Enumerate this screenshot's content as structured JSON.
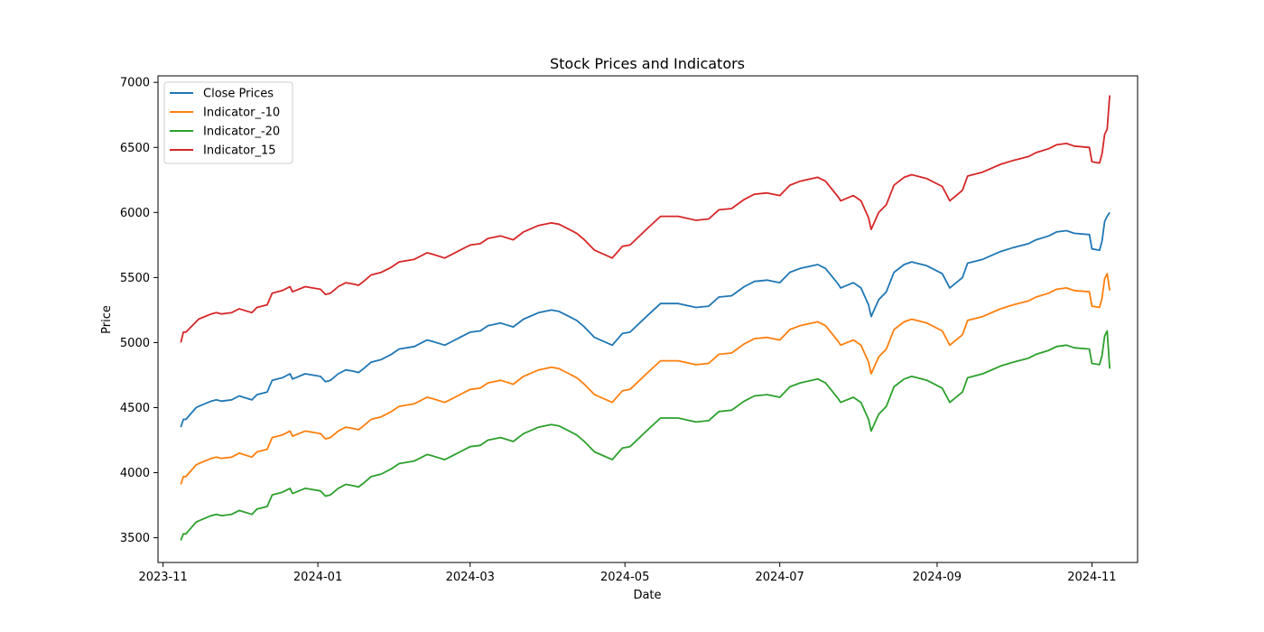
{
  "chart_data": {
    "type": "line",
    "title": "Stock Prices and Indicators",
    "xlabel": "Date",
    "ylabel": "Price",
    "xlim": [
      "2023-10-30",
      "2024-11-19"
    ],
    "ylim": [
      3310,
      7050
    ],
    "x_ticks": [
      "2023-11",
      "2024-01",
      "2024-03",
      "2024-05",
      "2024-07",
      "2024-09",
      "2024-11"
    ],
    "y_ticks": [
      3500,
      4000,
      4500,
      5000,
      5500,
      6000,
      6500,
      7000
    ],
    "grid": false,
    "legend_position": "top-left",
    "x": [
      "2023-11-08",
      "2023-11-09",
      "2023-11-10",
      "2023-11-14",
      "2023-11-15",
      "2023-11-20",
      "2023-11-22",
      "2023-11-24",
      "2023-11-28",
      "2023-12-01",
      "2023-12-06",
      "2023-12-08",
      "2023-12-12",
      "2023-12-14",
      "2023-12-18",
      "2023-12-21",
      "2023-12-22",
      "2023-12-27",
      "2024-01-02",
      "2024-01-04",
      "2024-01-06",
      "2024-01-09",
      "2024-01-12",
      "2024-01-15",
      "2024-01-17",
      "2024-01-19",
      "2024-01-22",
      "2024-01-26",
      "2024-01-30",
      "2024-02-02",
      "2024-02-08",
      "2024-02-13",
      "2024-02-15",
      "2024-02-20",
      "2024-02-23",
      "2024-03-01",
      "2024-03-05",
      "2024-03-08",
      "2024-03-13",
      "2024-03-18",
      "2024-03-22",
      "2024-03-28",
      "2024-04-02",
      "2024-04-05",
      "2024-04-09",
      "2024-04-12",
      "2024-04-15",
      "2024-04-19",
      "2024-04-26",
      "2024-04-30",
      "2024-05-03",
      "2024-05-10",
      "2024-05-15",
      "2024-05-22",
      "2024-05-29",
      "2024-06-03",
      "2024-06-07",
      "2024-06-12",
      "2024-06-17",
      "2024-06-21",
      "2024-06-26",
      "2024-07-01",
      "2024-07-05",
      "2024-07-09",
      "2024-07-16",
      "2024-07-19",
      "2024-07-24",
      "2024-07-25",
      "2024-07-30",
      "2024-08-02",
      "2024-08-05",
      "2024-08-06",
      "2024-08-09",
      "2024-08-12",
      "2024-08-15",
      "2024-08-19",
      "2024-08-22",
      "2024-08-28",
      "2024-09-03",
      "2024-09-06",
      "2024-09-11",
      "2024-09-13",
      "2024-09-19",
      "2024-09-26",
      "2024-10-01",
      "2024-10-07",
      "2024-10-10",
      "2024-10-15",
      "2024-10-18",
      "2024-10-22",
      "2024-10-25",
      "2024-10-31",
      "2024-11-01",
      "2024-11-04",
      "2024-11-05",
      "2024-11-06",
      "2024-11-07",
      "2024-11-08"
    ],
    "series": [
      {
        "name": "Close Prices",
        "color": "#1f77b4",
        "values": [
          4350,
          4410,
          4410,
          4500,
          4510,
          4550,
          4560,
          4550,
          4560,
          4590,
          4560,
          4600,
          4620,
          4710,
          4730,
          4760,
          4720,
          4760,
          4740,
          4700,
          4710,
          4760,
          4790,
          4780,
          4770,
          4800,
          4850,
          4870,
          4910,
          4950,
          4970,
          5020,
          5010,
          4980,
          5010,
          5080,
          5090,
          5130,
          5150,
          5120,
          5180,
          5230,
          5250,
          5240,
          5200,
          5170,
          5120,
          5040,
          4980,
          5070,
          5080,
          5210,
          5300,
          5300,
          5270,
          5280,
          5350,
          5360,
          5430,
          5470,
          5480,
          5460,
          5540,
          5570,
          5600,
          5570,
          5450,
          5420,
          5460,
          5420,
          5290,
          5200,
          5330,
          5390,
          5540,
          5600,
          5620,
          5590,
          5530,
          5420,
          5500,
          5610,
          5640,
          5700,
          5730,
          5760,
          5790,
          5820,
          5850,
          5860,
          5840,
          5830,
          5720,
          5710,
          5780,
          5930,
          5970,
          6000
        ]
      },
      {
        "name": "Indicator_-10",
        "color": "#ff7f0e",
        "values": [
          3910,
          3970,
          3970,
          4060,
          4070,
          4110,
          4120,
          4110,
          4120,
          4150,
          4120,
          4160,
          4180,
          4270,
          4290,
          4320,
          4280,
          4320,
          4300,
          4260,
          4270,
          4320,
          4350,
          4340,
          4330,
          4360,
          4410,
          4430,
          4470,
          4510,
          4530,
          4580,
          4570,
          4540,
          4570,
          4640,
          4650,
          4690,
          4710,
          4680,
          4740,
          4790,
          4810,
          4800,
          4760,
          4730,
          4680,
          4600,
          4540,
          4630,
          4640,
          4770,
          4860,
          4860,
          4830,
          4840,
          4910,
          4920,
          4990,
          5030,
          5040,
          5020,
          5100,
          5130,
          5160,
          5130,
          5010,
          4980,
          5020,
          4980,
          4850,
          4760,
          4890,
          4950,
          5100,
          5160,
          5180,
          5150,
          5090,
          4980,
          5060,
          5170,
          5200,
          5260,
          5290,
          5320,
          5350,
          5380,
          5410,
          5420,
          5400,
          5390,
          5280,
          5270,
          5340,
          5490,
          5530,
          5400
        ]
      },
      {
        "name": "Indicator_-20",
        "color": "#2ca02c",
        "values": [
          3480,
          3530,
          3530,
          3620,
          3630,
          3670,
          3680,
          3670,
          3680,
          3710,
          3680,
          3720,
          3740,
          3830,
          3850,
          3880,
          3840,
          3880,
          3860,
          3820,
          3830,
          3880,
          3910,
          3900,
          3890,
          3920,
          3970,
          3990,
          4030,
          4070,
          4090,
          4140,
          4130,
          4100,
          4130,
          4200,
          4210,
          4250,
          4270,
          4240,
          4300,
          4350,
          4370,
          4360,
          4320,
          4290,
          4240,
          4160,
          4100,
          4190,
          4200,
          4330,
          4420,
          4420,
          4390,
          4400,
          4470,
          4480,
          4550,
          4590,
          4600,
          4580,
          4660,
          4690,
          4720,
          4690,
          4570,
          4540,
          4580,
          4540,
          4410,
          4320,
          4450,
          4510,
          4660,
          4720,
          4740,
          4710,
          4650,
          4540,
          4620,
          4730,
          4760,
          4820,
          4850,
          4880,
          4910,
          4940,
          4970,
          4980,
          4960,
          4950,
          4840,
          4830,
          4900,
          5050,
          5090,
          4800
        ]
      },
      {
        "name": "Indicator_15",
        "color": "#d62728",
        "values": [
          5000,
          5080,
          5080,
          5160,
          5180,
          5220,
          5230,
          5220,
          5230,
          5260,
          5230,
          5270,
          5290,
          5380,
          5400,
          5430,
          5390,
          5430,
          5410,
          5370,
          5380,
          5430,
          5460,
          5450,
          5440,
          5470,
          5520,
          5540,
          5580,
          5620,
          5640,
          5690,
          5680,
          5650,
          5680,
          5750,
          5760,
          5800,
          5820,
          5790,
          5850,
          5900,
          5920,
          5910,
          5870,
          5840,
          5790,
          5710,
          5650,
          5740,
          5750,
          5880,
          5970,
          5970,
          5940,
          5950,
          6020,
          6030,
          6100,
          6140,
          6150,
          6130,
          6210,
          6240,
          6270,
          6240,
          6120,
          6090,
          6130,
          6090,
          5960,
          5870,
          6000,
          6060,
          6210,
          6270,
          6290,
          6260,
          6200,
          6090,
          6170,
          6280,
          6310,
          6370,
          6400,
          6430,
          6460,
          6490,
          6520,
          6530,
          6510,
          6500,
          6390,
          6380,
          6450,
          6600,
          6640,
          6900
        ]
      }
    ]
  }
}
